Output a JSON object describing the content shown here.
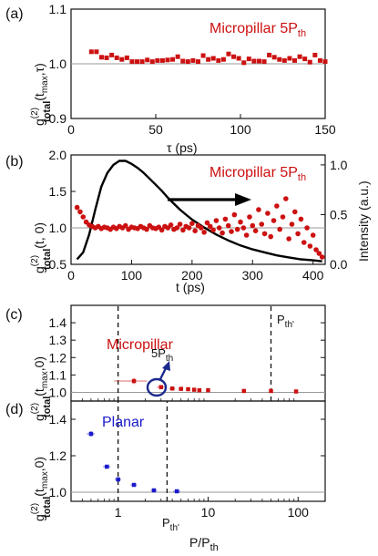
{
  "colors": {
    "red": "#cc1111",
    "blue": "#1a1acc",
    "curve": "#000000",
    "ref_line": "#9a9a9a"
  },
  "chart_data": [
    {
      "id": "a",
      "type": "scatter",
      "panel_label": "(a)",
      "annotation": "Micropillar  5P",
      "annotation_sub": "th",
      "ylabel_main": "g",
      "ylabel_sup": "(2)",
      "ylabel_sub": "total",
      "ylabel_tail": "(t",
      "ylabel_tsub": "max",
      "ylabel_end": ",τ)",
      "xlabel": "τ (ps)",
      "xlim": [
        0,
        150
      ],
      "ylim": [
        0.9,
        1.1
      ],
      "xticks": [
        0,
        50,
        100,
        150
      ],
      "xtick_labels": [
        "0",
        "50",
        "100",
        "150"
      ],
      "yticks": [
        0.9,
        1.0,
        1.1
      ],
      "ytick_labels": [
        "0.9",
        "1.0",
        "1.1"
      ],
      "ref_y": 1.0,
      "series": [
        {
          "marker": "square",
          "x": [
            12,
            15,
            18,
            21,
            24,
            27,
            30,
            33,
            36,
            39,
            42,
            45,
            48,
            51,
            54,
            57,
            60,
            63,
            66,
            69,
            72,
            75,
            78,
            81,
            84,
            87,
            90,
            93,
            96,
            99,
            102,
            105,
            108,
            111,
            114,
            117,
            120,
            123,
            126,
            129,
            132,
            135,
            138,
            141,
            144,
            147,
            150
          ],
          "y": [
            1.022,
            1.022,
            1.012,
            1.011,
            1.016,
            1.011,
            1.008,
            1.011,
            1.004,
            1.004,
            1.004,
            1.007,
            1.004,
            1.006,
            1.006,
            1.007,
            1.008,
            1.013,
            1.005,
            1.004,
            1.006,
            1.004,
            1.015,
            1.008,
            1.01,
            1.006,
            1.008,
            1.018,
            1.013,
            1.01,
            1.002,
            1.009,
            1.005,
            1.005,
            1.004,
            1.016,
            1.012,
            1.008,
            1.006,
            1.01,
            1.006,
            1.013,
            1.009,
            1.003,
            1.016,
            1.006,
            1.004
          ]
        }
      ]
    },
    {
      "id": "b",
      "type": "scatter",
      "panel_label": "(b)",
      "annotation": "Micropillar  5P",
      "annotation_sub": "th",
      "ylabel_main": "g",
      "ylabel_sup": "(2)",
      "ylabel_sub": "total",
      "ylabel_tail": "(t, 0)",
      "y2label": "Intensity (a.u.)",
      "xlabel": "t (ps)",
      "xlim": [
        0,
        420
      ],
      "ylim": [
        0.5,
        2.0
      ],
      "y2lim": [
        0,
        1.1
      ],
      "xticks": [
        0,
        100,
        200,
        300,
        400
      ],
      "xtick_labels": [
        "0",
        "100",
        "200",
        "300",
        "400"
      ],
      "yticks": [
        0.5,
        1.0,
        1.5,
        2.0
      ],
      "ytick_labels": [
        "0.5",
        "1.0",
        "1.5",
        "2.0"
      ],
      "y2ticks": [
        0.0,
        0.5,
        1.0
      ],
      "y2tick_labels": [
        "0.0",
        "0.5",
        "1.0"
      ],
      "ref_y": 1.0,
      "series": [
        {
          "marker": "circle",
          "x": [
            10,
            15,
            20,
            25,
            30,
            35,
            40,
            45,
            50,
            55,
            60,
            65,
            70,
            75,
            80,
            85,
            90,
            95,
            100,
            105,
            110,
            115,
            120,
            125,
            130,
            135,
            140,
            145,
            150,
            155,
            160,
            165,
            170,
            175,
            180,
            185,
            190,
            195,
            200,
            205,
            210,
            215,
            220,
            225,
            230,
            235,
            240,
            245,
            250,
            255,
            260,
            265,
            270,
            275,
            280,
            285,
            290,
            295,
            300,
            305,
            310,
            315,
            320,
            325,
            330,
            335,
            340,
            345,
            350,
            355,
            360,
            365,
            370,
            375,
            380,
            385,
            390,
            395,
            400,
            405,
            410,
            415
          ],
          "y": [
            1.28,
            1.22,
            1.15,
            1.08,
            1.04,
            1.02,
            1.0,
            1.02,
            0.99,
            1.01,
            1.0,
            0.98,
            1.01,
            0.99,
            1.02,
            1.0,
            1.03,
            0.98,
            1.01,
            1.0,
            0.99,
            1.02,
            1.0,
            0.98,
            1.03,
            1.0,
            0.99,
            1.01,
            0.97,
            1.02,
            1.0,
            1.04,
            0.98,
            1.0,
            1.05,
            0.97,
            1.02,
            1.0,
            1.06,
            0.96,
            1.03,
            1.0,
            0.94,
            1.07,
            1.02,
            0.97,
            1.1,
            1.0,
            0.93,
            1.12,
            1.03,
            0.95,
            1.18,
            0.98,
            1.08,
            1.0,
            0.9,
            1.15,
            1.03,
            0.96,
            1.25,
            1.05,
            0.92,
            1.2,
            0.88,
            1.1,
            1.3,
            0.98,
            1.15,
            1.4,
            0.85,
            1.05,
            1.22,
            0.92,
            1.12,
            0.8,
            1.0,
            0.75,
            0.9,
            0.7,
            0.65,
            0.6
          ]
        },
        {
          "type": "line",
          "axis": "y2",
          "x": [
            10,
            20,
            30,
            40,
            50,
            60,
            70,
            80,
            90,
            100,
            110,
            120,
            130,
            140,
            150,
            160,
            170,
            180,
            190,
            200,
            220,
            240,
            260,
            280,
            300,
            320,
            340,
            360,
            380,
            400,
            415
          ],
          "y": [
            0.05,
            0.12,
            0.3,
            0.55,
            0.78,
            0.92,
            1.0,
            1.04,
            1.04,
            1.01,
            0.97,
            0.92,
            0.86,
            0.8,
            0.74,
            0.67,
            0.61,
            0.55,
            0.5,
            0.45,
            0.37,
            0.3,
            0.24,
            0.19,
            0.15,
            0.12,
            0.09,
            0.07,
            0.05,
            0.04,
            0.03
          ]
        }
      ]
    },
    {
      "id": "c",
      "type": "scatter",
      "panel_label": "(c)",
      "annotation": "Micropillar",
      "point_label": "5P",
      "point_label_sub": "th",
      "pth_label": "P",
      "pth_label_sub": "th'",
      "ylabel_main": "g",
      "ylabel_sup": "(2)",
      "ylabel_sub": "total",
      "ylabel_tail": "(t",
      "ylabel_tsub": "max",
      "ylabel_end": ",0)",
      "xscale": "log",
      "xlim": [
        0.3,
        200
      ],
      "ylim": [
        0.95,
        1.5
      ],
      "yticks": [
        1.0,
        1.1,
        1.2,
        1.3,
        1.4
      ],
      "ytick_labels": [
        "1.0",
        "1.1",
        "1.2",
        "1.3",
        "1.4"
      ],
      "vlines": [
        1,
        50
      ],
      "ref_y": 1.0,
      "series": [
        {
          "marker": "square",
          "x": [
            1.5,
            3,
            4,
            5,
            6,
            7,
            8,
            10,
            25,
            50,
            95
          ],
          "y": [
            1.065,
            1.03,
            1.022,
            1.02,
            1.018,
            1.015,
            1.012,
            1.012,
            1.008,
            1.008,
            1.005
          ],
          "xerr": [
            0.6,
            0.3,
            0.3,
            0.3,
            0.3,
            0.3,
            0.3,
            0.4,
            1,
            2,
            4
          ],
          "yerr": [
            0.018,
            0.01,
            0.008,
            0.006,
            0.006,
            0.005,
            0.005,
            0.005,
            0.004,
            0.004,
            0.004
          ]
        }
      ]
    },
    {
      "id": "d",
      "type": "scatter",
      "panel_label": "(d)",
      "annotation": "Planar",
      "pth_label": "P",
      "pth_label_sub": "th'",
      "ylabel_main": "g",
      "ylabel_sup": "(2)",
      "ylabel_sub": "total",
      "ylabel_tail": "(t",
      "ylabel_tsub": "max",
      "ylabel_end": ",0)",
      "xlabel": "P/P",
      "xlabel_sub": "th",
      "xscale": "log",
      "xlim": [
        0.3,
        200
      ],
      "ylim": [
        0.95,
        1.5
      ],
      "xticks": [
        1,
        10,
        100
      ],
      "xtick_labels": [
        "1",
        "10",
        "100"
      ],
      "yticks": [
        1.0,
        1.2,
        1.4
      ],
      "ytick_labels": [
        "1.0",
        "1.2",
        "1.4"
      ],
      "vlines": [
        1,
        3.5
      ],
      "ref_y": 1.0,
      "series": [
        {
          "marker": "square",
          "x": [
            0.5,
            0.75,
            1,
            1.5,
            2.5,
            4.5
          ],
          "y": [
            1.32,
            1.14,
            1.07,
            1.04,
            1.01,
            1.005
          ],
          "xerr": [
            0.05,
            0.07,
            0.08,
            0.12,
            0.2,
            0.4
          ],
          "yerr": [
            0.015,
            0.01,
            0.01,
            0.008,
            0.006,
            0.005
          ]
        }
      ]
    }
  ]
}
